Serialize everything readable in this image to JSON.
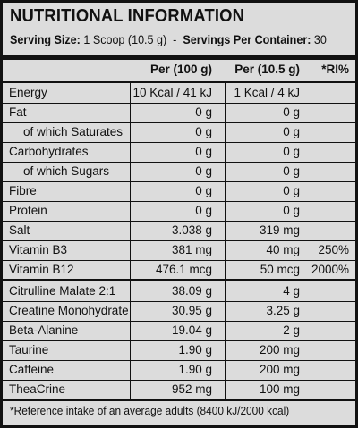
{
  "title": "NUTRITIONAL INFORMATION",
  "serving": {
    "size_label": "Serving Size:",
    "size_value": "1 Scoop (10.5 g)",
    "separator": "-",
    "per_container_label": "Servings Per Container:",
    "per_container_value": "30"
  },
  "headers": {
    "per100": "Per (100 g)",
    "perServing": "Per (10.5 g)",
    "ri": "*RI%"
  },
  "rows": [
    {
      "label": "Energy",
      "per100": "10 Kcal / 41 kJ",
      "perServing": "1 Kcal / 4 kJ",
      "ri": ""
    },
    {
      "label": "Fat",
      "per100": "0 g",
      "perServing": "0 g",
      "ri": ""
    },
    {
      "label": "of which Saturates",
      "per100": "0 g",
      "perServing": "0 g",
      "ri": ""
    },
    {
      "label": "Carbohydrates",
      "per100": "0 g",
      "perServing": "0 g",
      "ri": ""
    },
    {
      "label": "of which Sugars",
      "per100": "0 g",
      "perServing": "0 g",
      "ri": ""
    },
    {
      "label": "Fibre",
      "per100": "0 g",
      "perServing": "0 g",
      "ri": ""
    },
    {
      "label": "Protein",
      "per100": "0 g",
      "perServing": "0 g",
      "ri": ""
    },
    {
      "label": "Salt",
      "per100": "3.038 g",
      "perServing": "319 mg",
      "ri": ""
    },
    {
      "label": "Vitamin B3",
      "per100": "381 mg",
      "perServing": "40 mg",
      "ri": "250%"
    },
    {
      "label": "Vitamin B12",
      "per100": "476.1 mcg",
      "perServing": "50 mcg",
      "ri": "2000%"
    },
    {
      "label": "Citrulline Malate 2:1",
      "per100": "38.09 g",
      "perServing": "4 g",
      "ri": ""
    },
    {
      "label": "Creatine Monohydrate",
      "per100": "30.95 g",
      "perServing": "3.25 g",
      "ri": ""
    },
    {
      "label": "Beta-Alanine",
      "per100": "19.04 g",
      "perServing": "2 g",
      "ri": ""
    },
    {
      "label": "Taurine",
      "per100": "1.90 g",
      "perServing": "200 mg",
      "ri": ""
    },
    {
      "label": "Caffeine",
      "per100": "1.90 g",
      "perServing": "200 mg",
      "ri": ""
    },
    {
      "label": "TheaCrine",
      "per100": "952 mg",
      "perServing": "100 mg",
      "ri": ""
    }
  ],
  "footnote": "*Reference intake of an average adults (8400 kJ/2000 kcal)"
}
